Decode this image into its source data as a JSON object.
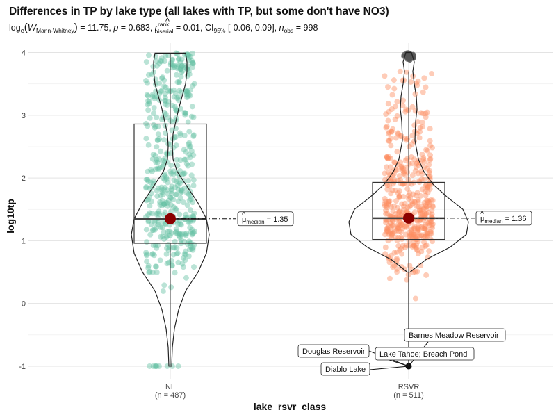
{
  "chart_data": {
    "type": "violin-box-scatter",
    "title": "Differences in TP by lake type (all lakes with TP, but some don't have NO3)",
    "subtitle": {
      "prefix": "log",
      "log_sub": "e",
      "W": "W",
      "W_sub": "Mann-Whitney",
      "stat": " = 11.75, ",
      "p_label": "p",
      "p_value": " = 0.683, ",
      "r_label": "r",
      "r_hat": "^",
      "r_sup": "rank",
      "r_sub": "biserial",
      "r_value": " = 0.01, CI",
      "ci_sub": "95%",
      "ci_value": " [-0.06, 0.09], ",
      "n_label": "n",
      "n_sub": "obs",
      "n_value": " = 998"
    },
    "xlabel": "lake_rsvr_class",
    "ylabel": "log10tp",
    "ylim": [
      -1.2,
      4.15
    ],
    "yticks": [
      "-1",
      "0",
      "1",
      "2",
      "3",
      "4"
    ],
    "grid": true,
    "groups": [
      {
        "name": "NL",
        "n_label": "(n = 487)",
        "n": 487,
        "color": "#66c2a5",
        "q1": 0.96,
        "median": 1.35,
        "q3": 2.86,
        "whisker_low": -1.0,
        "whisker_high": 3.99,
        "mean": 1.35,
        "median_label": {
          "mu": "μ",
          "hat": "^",
          "sub": "median",
          "value": " = 1.35"
        }
      },
      {
        "name": "RSVR",
        "n_label": "(n = 511)",
        "n": 511,
        "color": "#fc8d62",
        "q1": 1.02,
        "median": 1.36,
        "q3": 1.93,
        "whisker_low": 0.5,
        "whisker_high": 3.7,
        "mean": 1.36,
        "median_label": {
          "mu": "μ",
          "hat": "^",
          "sub": "median",
          "value": " = 1.36"
        }
      }
    ],
    "outlier_labels": [
      {
        "text": "Barnes Meadow Reservoir",
        "group": "RSVR",
        "y": -1.0
      },
      {
        "text": "Douglas Reservoir",
        "group": "RSVR",
        "y": -1.0
      },
      {
        "text": "Lake Tahoe; Breach Pond",
        "group": "RSVR",
        "y": -1.0
      },
      {
        "text": "Diablo Lake",
        "group": "RSVR",
        "y": -1.0
      }
    ]
  }
}
